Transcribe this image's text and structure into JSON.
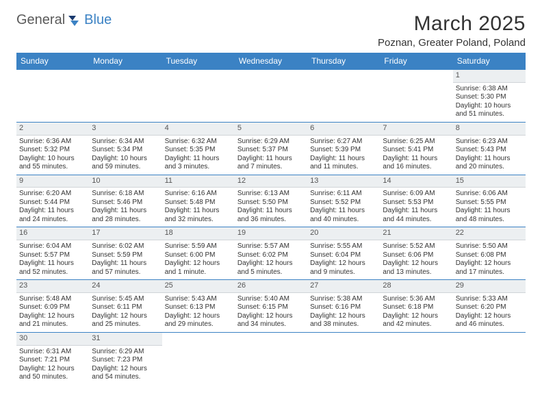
{
  "brand": {
    "part1": "General",
    "part2": "Blue"
  },
  "header": {
    "title": "March 2025",
    "location": "Poznan, Greater Poland, Poland"
  },
  "colors": {
    "header_bg": "#3b82c4",
    "header_fg": "#ffffff",
    "daynum_bg": "#eceff1",
    "rule": "#3b82c4",
    "text": "#333333",
    "logo_gray": "#5a5a5a",
    "logo_blue": "#3b82c4"
  },
  "weekdays": [
    "Sunday",
    "Monday",
    "Tuesday",
    "Wednesday",
    "Thursday",
    "Friday",
    "Saturday"
  ],
  "weeks": [
    [
      null,
      null,
      null,
      null,
      null,
      null,
      {
        "n": "1",
        "sr": "Sunrise: 6:38 AM",
        "ss": "Sunset: 5:30 PM",
        "dl": "Daylight: 10 hours and 51 minutes."
      }
    ],
    [
      {
        "n": "2",
        "sr": "Sunrise: 6:36 AM",
        "ss": "Sunset: 5:32 PM",
        "dl": "Daylight: 10 hours and 55 minutes."
      },
      {
        "n": "3",
        "sr": "Sunrise: 6:34 AM",
        "ss": "Sunset: 5:34 PM",
        "dl": "Daylight: 10 hours and 59 minutes."
      },
      {
        "n": "4",
        "sr": "Sunrise: 6:32 AM",
        "ss": "Sunset: 5:35 PM",
        "dl": "Daylight: 11 hours and 3 minutes."
      },
      {
        "n": "5",
        "sr": "Sunrise: 6:29 AM",
        "ss": "Sunset: 5:37 PM",
        "dl": "Daylight: 11 hours and 7 minutes."
      },
      {
        "n": "6",
        "sr": "Sunrise: 6:27 AM",
        "ss": "Sunset: 5:39 PM",
        "dl": "Daylight: 11 hours and 11 minutes."
      },
      {
        "n": "7",
        "sr": "Sunrise: 6:25 AM",
        "ss": "Sunset: 5:41 PM",
        "dl": "Daylight: 11 hours and 16 minutes."
      },
      {
        "n": "8",
        "sr": "Sunrise: 6:23 AM",
        "ss": "Sunset: 5:43 PM",
        "dl": "Daylight: 11 hours and 20 minutes."
      }
    ],
    [
      {
        "n": "9",
        "sr": "Sunrise: 6:20 AM",
        "ss": "Sunset: 5:44 PM",
        "dl": "Daylight: 11 hours and 24 minutes."
      },
      {
        "n": "10",
        "sr": "Sunrise: 6:18 AM",
        "ss": "Sunset: 5:46 PM",
        "dl": "Daylight: 11 hours and 28 minutes."
      },
      {
        "n": "11",
        "sr": "Sunrise: 6:16 AM",
        "ss": "Sunset: 5:48 PM",
        "dl": "Daylight: 11 hours and 32 minutes."
      },
      {
        "n": "12",
        "sr": "Sunrise: 6:13 AM",
        "ss": "Sunset: 5:50 PM",
        "dl": "Daylight: 11 hours and 36 minutes."
      },
      {
        "n": "13",
        "sr": "Sunrise: 6:11 AM",
        "ss": "Sunset: 5:52 PM",
        "dl": "Daylight: 11 hours and 40 minutes."
      },
      {
        "n": "14",
        "sr": "Sunrise: 6:09 AM",
        "ss": "Sunset: 5:53 PM",
        "dl": "Daylight: 11 hours and 44 minutes."
      },
      {
        "n": "15",
        "sr": "Sunrise: 6:06 AM",
        "ss": "Sunset: 5:55 PM",
        "dl": "Daylight: 11 hours and 48 minutes."
      }
    ],
    [
      {
        "n": "16",
        "sr": "Sunrise: 6:04 AM",
        "ss": "Sunset: 5:57 PM",
        "dl": "Daylight: 11 hours and 52 minutes."
      },
      {
        "n": "17",
        "sr": "Sunrise: 6:02 AM",
        "ss": "Sunset: 5:59 PM",
        "dl": "Daylight: 11 hours and 57 minutes."
      },
      {
        "n": "18",
        "sr": "Sunrise: 5:59 AM",
        "ss": "Sunset: 6:00 PM",
        "dl": "Daylight: 12 hours and 1 minute."
      },
      {
        "n": "19",
        "sr": "Sunrise: 5:57 AM",
        "ss": "Sunset: 6:02 PM",
        "dl": "Daylight: 12 hours and 5 minutes."
      },
      {
        "n": "20",
        "sr": "Sunrise: 5:55 AM",
        "ss": "Sunset: 6:04 PM",
        "dl": "Daylight: 12 hours and 9 minutes."
      },
      {
        "n": "21",
        "sr": "Sunrise: 5:52 AM",
        "ss": "Sunset: 6:06 PM",
        "dl": "Daylight: 12 hours and 13 minutes."
      },
      {
        "n": "22",
        "sr": "Sunrise: 5:50 AM",
        "ss": "Sunset: 6:08 PM",
        "dl": "Daylight: 12 hours and 17 minutes."
      }
    ],
    [
      {
        "n": "23",
        "sr": "Sunrise: 5:48 AM",
        "ss": "Sunset: 6:09 PM",
        "dl": "Daylight: 12 hours and 21 minutes."
      },
      {
        "n": "24",
        "sr": "Sunrise: 5:45 AM",
        "ss": "Sunset: 6:11 PM",
        "dl": "Daylight: 12 hours and 25 minutes."
      },
      {
        "n": "25",
        "sr": "Sunrise: 5:43 AM",
        "ss": "Sunset: 6:13 PM",
        "dl": "Daylight: 12 hours and 29 minutes."
      },
      {
        "n": "26",
        "sr": "Sunrise: 5:40 AM",
        "ss": "Sunset: 6:15 PM",
        "dl": "Daylight: 12 hours and 34 minutes."
      },
      {
        "n": "27",
        "sr": "Sunrise: 5:38 AM",
        "ss": "Sunset: 6:16 PM",
        "dl": "Daylight: 12 hours and 38 minutes."
      },
      {
        "n": "28",
        "sr": "Sunrise: 5:36 AM",
        "ss": "Sunset: 6:18 PM",
        "dl": "Daylight: 12 hours and 42 minutes."
      },
      {
        "n": "29",
        "sr": "Sunrise: 5:33 AM",
        "ss": "Sunset: 6:20 PM",
        "dl": "Daylight: 12 hours and 46 minutes."
      }
    ],
    [
      {
        "n": "30",
        "sr": "Sunrise: 6:31 AM",
        "ss": "Sunset: 7:21 PM",
        "dl": "Daylight: 12 hours and 50 minutes."
      },
      {
        "n": "31",
        "sr": "Sunrise: 6:29 AM",
        "ss": "Sunset: 7:23 PM",
        "dl": "Daylight: 12 hours and 54 minutes."
      },
      null,
      null,
      null,
      null,
      null
    ]
  ]
}
